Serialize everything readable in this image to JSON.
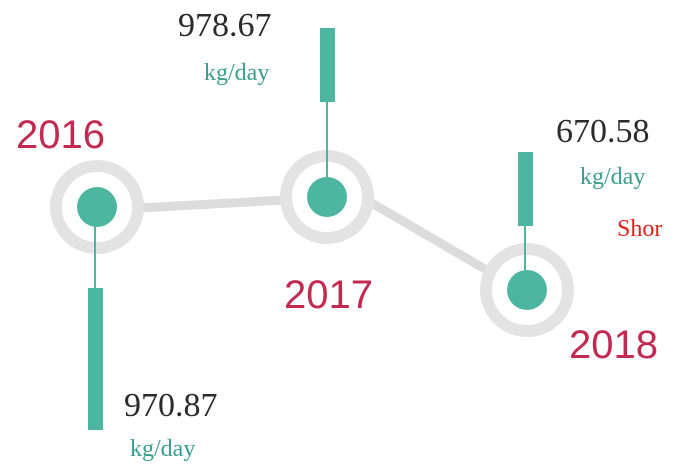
{
  "nodes": [
    {
      "year": "2016",
      "value": "970.87",
      "unit": "kg/day"
    },
    {
      "year": "2017",
      "value": "978.67",
      "unit": "kg/day"
    },
    {
      "year": "2018",
      "value": "670.58",
      "unit": "kg/day"
    }
  ],
  "note": "Shor"
}
